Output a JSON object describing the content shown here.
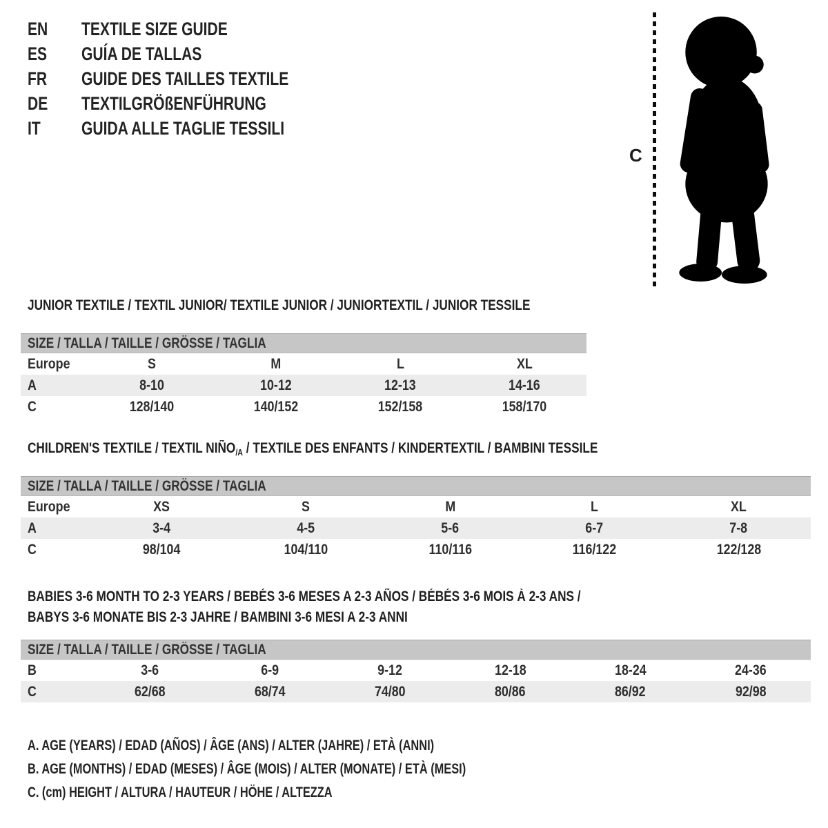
{
  "languages": [
    {
      "code": "EN",
      "title": "TEXTILE SIZE GUIDE"
    },
    {
      "code": "ES",
      "title": "GUÍA DE TALLAS"
    },
    {
      "code": "FR",
      "title": "GUIDE DES TAILLES TEXTILE"
    },
    {
      "code": "DE",
      "title": "TEXTILGRÖßENFÜHRUNG"
    },
    {
      "code": "IT",
      "title": "GUIDA ALLE TAGLIE TESSILI"
    }
  ],
  "figure": {
    "label": "C",
    "icon": "toddler-silhouette"
  },
  "sections": [
    {
      "id": "junior",
      "heading": "JUNIOR TEXTILE / TEXTIL JUNIOR/ TEXTILE JUNIOR / JUNIORTEXTIL / JUNIOR TESSILE",
      "table": {
        "header": "SIZE / TALLA / TAILLE / GRÖSSE / TAGLIA",
        "rows": [
          {
            "label": "Europe",
            "values": [
              "S",
              "M",
              "L",
              "XL"
            ],
            "shaded": false
          },
          {
            "label": "A",
            "values": [
              "8-10",
              "10-12",
              "12-13",
              "14-16"
            ],
            "shaded": true
          },
          {
            "label": "C",
            "values": [
              "128/140",
              "140/152",
              "152/158",
              "158/170"
            ],
            "shaded": false
          }
        ]
      }
    },
    {
      "id": "children",
      "heading_pre": "CHILDREN'S TEXTILE / TEXTIL NIÑO",
      "heading_sub": "/A",
      "heading_post": " / TEXTILE DES ENFANTS / KINDERTEXTIL / BAMBINI TESSILE",
      "table": {
        "header": "SIZE / TALLA / TAILLE / GRÖSSE / TAGLIA",
        "rows": [
          {
            "label": "Europe",
            "values": [
              "XS",
              "S",
              "M",
              "L",
              "XL"
            ],
            "shaded": false
          },
          {
            "label": "A",
            "values": [
              "3-4",
              "4-5",
              "5-6",
              "6-7",
              "7-8"
            ],
            "shaded": true
          },
          {
            "label": "C",
            "values": [
              "98/104",
              "104/110",
              "110/116",
              "116/122",
              "122/128"
            ],
            "shaded": false
          }
        ]
      }
    },
    {
      "id": "babies",
      "heading_line1": "BABIES 3-6 MONTH TO 2-3 YEARS / BEBÉS 3-6 MESES A 2-3 AÑOS / BÉBÉS 3-6 MOIS À 2-3 ANS /",
      "heading_line2": "BABYS 3-6 MONATE BIS 2-3 JAHRE / BAMBINI 3-6 MESI A 2-3 ANNI",
      "table": {
        "header": "SIZE / TALLA / TAILLE / GRÖSSE / TAGLIA",
        "rows": [
          {
            "label": "B",
            "values": [
              "3-6",
              "6-9",
              "9-12",
              "12-18",
              "18-24",
              "24-36"
            ],
            "shaded": false
          },
          {
            "label": "C",
            "values": [
              "62/68",
              "68/74",
              "74/80",
              "80/86",
              "86/92",
              "92/98"
            ],
            "shaded": true
          }
        ]
      }
    }
  ],
  "legend": [
    "A. AGE (YEARS) / EDAD (AÑOS) / ÂGE (ANS) / ALTER (JAHRE) / ETÀ (ANNI)",
    "B. AGE (MONTHS) / EDAD (MESES) / ÂGE (MOIS) / ALTER (MONATE) / ETÀ (MESI)",
    "C. (cm) HEIGHT / ALTURA / HAUTEUR / HÖHE / ALTEZZA"
  ],
  "colors": {
    "table_header_bar": "#c6c6c6",
    "shaded_row": "#ececec",
    "text": "#2d2d2d",
    "silhouette": "#000000"
  }
}
